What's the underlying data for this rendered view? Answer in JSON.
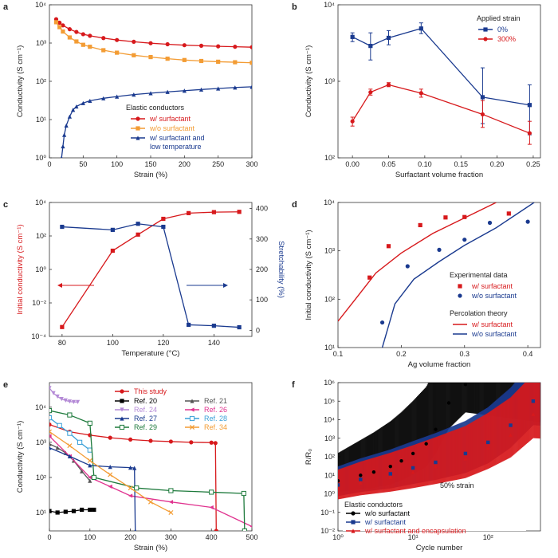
{
  "chart_data": [
    {
      "panel": "a",
      "type": "line",
      "xlabel": "Strain (%)",
      "ylabel": "Conductivity (S cm⁻¹)",
      "xlim": [
        0,
        300
      ],
      "ylim": [
        1,
        10000
      ],
      "yscale": "log",
      "xticks": [
        "0",
        "50",
        "100",
        "150",
        "200",
        "250",
        "300"
      ],
      "yticks": [
        "10⁰",
        "10¹",
        "10²",
        "10³",
        "10⁴"
      ],
      "legend_title": "Elastic conductors",
      "legend_position": "right",
      "series": [
        {
          "name": "w/ surfactant",
          "color": "#d7191c",
          "marker": "circle",
          "x": [
            10,
            15,
            20,
            30,
            40,
            50,
            60,
            80,
            100,
            125,
            150,
            175,
            200,
            225,
            250,
            275,
            300
          ],
          "y": [
            4200,
            3400,
            2900,
            2300,
            1950,
            1700,
            1550,
            1350,
            1200,
            1080,
            990,
            930,
            880,
            850,
            820,
            800,
            780
          ]
        },
        {
          "name": "w/o surfactant",
          "color": "#f39c34",
          "marker": "square",
          "x": [
            10,
            15,
            20,
            30,
            40,
            50,
            60,
            80,
            100,
            125,
            150,
            175,
            200,
            225,
            250,
            275,
            300
          ],
          "y": [
            3500,
            2600,
            2000,
            1400,
            1100,
            900,
            800,
            650,
            560,
            480,
            430,
            390,
            360,
            340,
            325,
            315,
            305
          ]
        },
        {
          "name": "w/ surfactant and\nlow temperature",
          "color": "#1a3a8f",
          "marker": "triangle",
          "x": [
            18,
            20,
            22,
            25,
            30,
            35,
            40,
            50,
            60,
            80,
            100,
            125,
            150,
            175,
            200,
            225,
            250,
            275,
            300
          ],
          "y": [
            1,
            2,
            4,
            7,
            12,
            18,
            22,
            27,
            31,
            36,
            40,
            45,
            49,
            53,
            57,
            61,
            65,
            69,
            72
          ]
        }
      ]
    },
    {
      "panel": "b",
      "type": "line",
      "xlabel": "Surfactant volume fraction",
      "ylabel": "Conductivity (S cm⁻¹)",
      "xlim": [
        -0.02,
        0.26
      ],
      "ylim": [
        100,
        10000
      ],
      "yscale": "log",
      "xticks": [
        "0.00",
        "0.05",
        "0.10",
        "0.15",
        "0.20",
        "0.25"
      ],
      "yticks": [
        "10²",
        "10³",
        "10⁴"
      ],
      "legend_title": "Applied strain",
      "legend_position": "top-right",
      "series": [
        {
          "name": "0%",
          "color": "#1a3a8f",
          "marker": "square",
          "x": [
            0,
            0.025,
            0.05,
            0.095,
            0.18,
            0.245
          ],
          "y": [
            3800,
            2900,
            3700,
            4900,
            620,
            490
          ],
          "err_low": [
            3300,
            1900,
            3000,
            4200,
            280,
            200
          ],
          "err_high": [
            4300,
            4300,
            4600,
            5800,
            1500,
            900
          ]
        },
        {
          "name": "300%",
          "color": "#d7191c",
          "marker": "circle",
          "x": [
            0,
            0.025,
            0.05,
            0.095,
            0.18,
            0.245
          ],
          "y": [
            300,
            720,
            900,
            700,
            370,
            210
          ],
          "err_low": [
            260,
            660,
            850,
            620,
            250,
            150
          ],
          "err_high": [
            340,
            790,
            960,
            790,
            560,
            300
          ]
        }
      ]
    },
    {
      "panel": "c",
      "type": "line",
      "xlabel": "Temperature (°C)",
      "ylabel": "Initial conductivity (S cm⁻¹)",
      "y2label": "Stretchability (%)",
      "xlim": [
        75,
        155
      ],
      "ylim": [
        1e-05,
        100000
      ],
      "yscale": "log",
      "y2lim": [
        -20,
        420
      ],
      "xticks": [
        "80",
        "100",
        "120",
        "140"
      ],
      "yticks": [
        "10⁻⁴",
        "10⁻²",
        "10⁰",
        "10²",
        "10⁴"
      ],
      "y2ticks": [
        "0",
        "100",
        "200",
        "300",
        "400"
      ],
      "series": [
        {
          "name": "Initial conductivity",
          "color": "#d7191c",
          "marker": "square",
          "axis": "left",
          "x": [
            80,
            100,
            110,
            120,
            130,
            140,
            150
          ],
          "y": [
            5e-05,
            25,
            400,
            6000,
            16000,
            19000,
            20000
          ]
        },
        {
          "name": "Stretchability",
          "color": "#1a3a8f",
          "marker": "square",
          "axis": "right",
          "x": [
            80,
            100,
            110,
            120,
            130,
            140,
            150
          ],
          "y": [
            340,
            330,
            350,
            340,
            18,
            15,
            10
          ]
        }
      ]
    },
    {
      "panel": "d",
      "type": "scatter",
      "xlabel": "Ag volume fraction",
      "ylabel": "Initial conductivity (S cm⁻¹)",
      "xlim": [
        0.1,
        0.42
      ],
      "ylim": [
        10,
        10000
      ],
      "yscale": "log",
      "xticks": [
        "0.1",
        "0.2",
        "0.3",
        "0.4"
      ],
      "yticks": [
        "10¹",
        "10²",
        "10³",
        "10⁴"
      ],
      "legend_group1": "Experimental data",
      "legend_group2": "Percolation theory",
      "legend_position": "bottom-right",
      "series": [
        {
          "name": "w/ surfactant",
          "color": "#d7191c",
          "marker": "square",
          "x": [
            0.15,
            0.18,
            0.23,
            0.27,
            0.3,
            0.37
          ],
          "y": [
            280,
            1250,
            3400,
            4900,
            5000,
            5900
          ]
        },
        {
          "name": "w/o surfactant",
          "color": "#1a3a8f",
          "marker": "circle",
          "x": [
            0.17,
            0.21,
            0.26,
            0.3,
            0.34,
            0.4
          ],
          "y": [
            33,
            480,
            1050,
            1700,
            3800,
            4000
          ]
        },
        {
          "name": "w/ surfactant",
          "color": "#d7191c",
          "type": "line",
          "x": [
            0.1,
            0.13,
            0.16,
            0.2,
            0.25,
            0.3,
            0.35
          ],
          "y": [
            35,
            110,
            350,
            900,
            2300,
            4800,
            10000
          ]
        },
        {
          "name": "w/o surfactant",
          "color": "#1a3a8f",
          "type": "line",
          "x": [
            0.17,
            0.19,
            0.22,
            0.26,
            0.3,
            0.35,
            0.41
          ],
          "y": [
            10,
            80,
            260,
            600,
            1300,
            3000,
            10000
          ]
        }
      ]
    },
    {
      "panel": "e",
      "type": "line",
      "xlabel": "Strain (%)",
      "ylabel": "Conductivity (S cm⁻¹)",
      "xlim": [
        0,
        500
      ],
      "ylim": [
        3,
        50000
      ],
      "yscale": "log",
      "xticks": [
        "0",
        "100",
        "200",
        "300",
        "400",
        "500"
      ],
      "yticks": [
        "10¹",
        "10²",
        "10³",
        "10⁴"
      ],
      "legend_position": "top",
      "series": [
        {
          "name": "This study",
          "color": "#d7191c",
          "marker": "circle",
          "x": [
            0,
            50,
            100,
            150,
            200,
            250,
            300,
            350,
            400,
            410,
            412
          ],
          "y": [
            3200,
            2000,
            1600,
            1350,
            1200,
            1100,
            1050,
            1000,
            980,
            950,
            3
          ]
        },
        {
          "name": "Ref. 20",
          "color": "#000000",
          "marker": "square",
          "x": [
            0,
            20,
            40,
            60,
            80,
            100,
            110
          ],
          "y": [
            11,
            10,
            10.5,
            11,
            12,
            12,
            12
          ]
        },
        {
          "name": "Ref. 21",
          "color": "#555555",
          "marker": "triangle",
          "x": [
            0,
            20,
            40,
            60,
            80,
            100
          ],
          "y": [
            900,
            700,
            500,
            300,
            150,
            80
          ]
        },
        {
          "name": "Ref. 24",
          "color": "#b48ad6",
          "marker": "triangle-down",
          "x": [
            0,
            10,
            20,
            30,
            40,
            50,
            60,
            70
          ],
          "y": [
            35000,
            25000,
            20000,
            17000,
            15500,
            14500,
            14000,
            14000
          ]
        },
        {
          "name": "Ref. 26",
          "color": "#e0338f",
          "marker": "triangle-left",
          "x": [
            0,
            50,
            100,
            150,
            200,
            300,
            400,
            500
          ],
          "y": [
            1500,
            400,
            100,
            55,
            30,
            20,
            14,
            4
          ]
        },
        {
          "name": "Ref. 27",
          "color": "#1a3a8f",
          "marker": "triangle",
          "x": [
            0,
            50,
            100,
            150,
            200,
            210,
            212
          ],
          "y": [
            700,
            400,
            220,
            200,
            190,
            185,
            3
          ]
        },
        {
          "name": "Ref. 28",
          "color": "#3aa0d8",
          "marker": "square-open",
          "x": [
            0,
            25,
            50,
            75,
            100
          ],
          "y": [
            5000,
            3000,
            1800,
            1000,
            600
          ]
        },
        {
          "name": "Ref. 29",
          "color": "#1e7a3c",
          "marker": "square-open",
          "x": [
            0,
            50,
            100,
            110,
            215,
            300,
            400,
            480,
            482
          ],
          "y": [
            8000,
            6000,
            3500,
            100,
            50,
            42,
            38,
            35,
            3
          ]
        },
        {
          "name": "Ref. 34",
          "color": "#f39c34",
          "marker": "cross",
          "x": [
            0,
            50,
            100,
            150,
            200,
            250,
            300
          ],
          "y": [
            2000,
            800,
            300,
            120,
            50,
            20,
            10
          ]
        }
      ]
    },
    {
      "panel": "f",
      "type": "scatter",
      "xlabel": "Cycle number",
      "ylabel": "R/R₀",
      "xlim": [
        1,
        500
      ],
      "ylim": [
        0.01,
        1000000
      ],
      "xscale": "log",
      "yscale": "log",
      "xticks": [
        "10⁰",
        "10¹",
        "10²"
      ],
      "yticks": [
        "10⁻²",
        "10⁻¹",
        "10⁰",
        "10¹",
        "10²",
        "10³",
        "10⁴",
        "10⁵",
        "10⁶"
      ],
      "annotation": "50% strain",
      "legend_title": "Elastic conductors",
      "legend_position": "bottom-left",
      "series": [
        {
          "name": "w/o surfactant",
          "color": "#000000",
          "marker": "circle",
          "x": [
            1,
            2,
            3,
            5,
            7,
            10,
            15,
            20,
            30,
            50
          ],
          "y": [
            5,
            10,
            15,
            30,
            60,
            150,
            500,
            3000,
            80000,
            800000
          ]
        },
        {
          "name": "w/ surfactant",
          "color": "#1a3a8f",
          "marker": "square",
          "x": [
            1,
            2,
            5,
            10,
            20,
            50,
            100,
            200,
            400
          ],
          "y": [
            3,
            6,
            12,
            25,
            50,
            150,
            600,
            5000,
            100000
          ]
        },
        {
          "name": "w/ surfactant and encapsulation",
          "color": "#d7191c",
          "marker": "triangle",
          "x": [
            1,
            2,
            5,
            10,
            20,
            50,
            100,
            200,
            400
          ],
          "y": [
            2,
            4,
            8,
            15,
            30,
            80,
            300,
            1500,
            20000
          ]
        }
      ]
    }
  ]
}
